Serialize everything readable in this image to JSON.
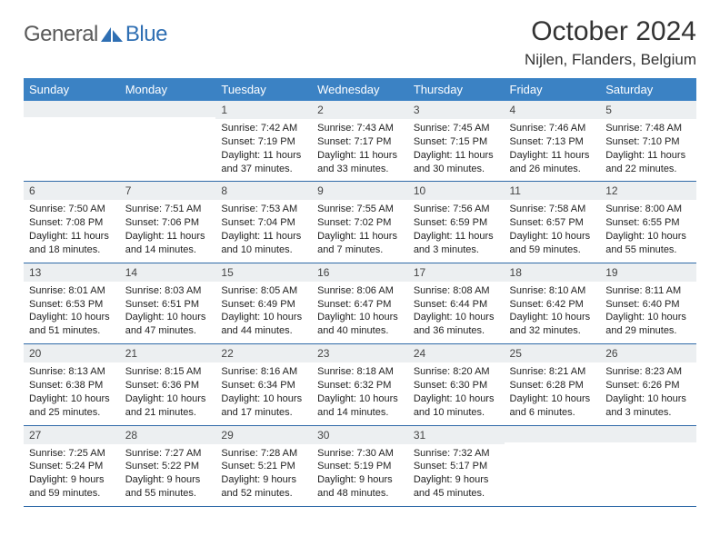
{
  "brand": {
    "word1": "General",
    "word2": "Blue",
    "word1_color": "#6a6a6a",
    "word2_color": "#2f6fb3"
  },
  "title": "October 2024",
  "location": "Nijlen, Flanders, Belgium",
  "colors": {
    "header_bg": "#3b82c4",
    "header_text": "#ffffff",
    "daynum_bg": "#eceff1",
    "row_border": "#2f6aa8",
    "page_bg": "#ffffff"
  },
  "fonts": {
    "title_size": 30,
    "location_size": 17,
    "dayhead_size": 13,
    "body_size": 11
  },
  "day_headers": [
    "Sunday",
    "Monday",
    "Tuesday",
    "Wednesday",
    "Thursday",
    "Friday",
    "Saturday"
  ],
  "weeks": [
    [
      null,
      null,
      {
        "num": "1",
        "sunrise": "Sunrise: 7:42 AM",
        "sunset": "Sunset: 7:19 PM",
        "daylight": "Daylight: 11 hours and 37 minutes."
      },
      {
        "num": "2",
        "sunrise": "Sunrise: 7:43 AM",
        "sunset": "Sunset: 7:17 PM",
        "daylight": "Daylight: 11 hours and 33 minutes."
      },
      {
        "num": "3",
        "sunrise": "Sunrise: 7:45 AM",
        "sunset": "Sunset: 7:15 PM",
        "daylight": "Daylight: 11 hours and 30 minutes."
      },
      {
        "num": "4",
        "sunrise": "Sunrise: 7:46 AM",
        "sunset": "Sunset: 7:13 PM",
        "daylight": "Daylight: 11 hours and 26 minutes."
      },
      {
        "num": "5",
        "sunrise": "Sunrise: 7:48 AM",
        "sunset": "Sunset: 7:10 PM",
        "daylight": "Daylight: 11 hours and 22 minutes."
      }
    ],
    [
      {
        "num": "6",
        "sunrise": "Sunrise: 7:50 AM",
        "sunset": "Sunset: 7:08 PM",
        "daylight": "Daylight: 11 hours and 18 minutes."
      },
      {
        "num": "7",
        "sunrise": "Sunrise: 7:51 AM",
        "sunset": "Sunset: 7:06 PM",
        "daylight": "Daylight: 11 hours and 14 minutes."
      },
      {
        "num": "8",
        "sunrise": "Sunrise: 7:53 AM",
        "sunset": "Sunset: 7:04 PM",
        "daylight": "Daylight: 11 hours and 10 minutes."
      },
      {
        "num": "9",
        "sunrise": "Sunrise: 7:55 AM",
        "sunset": "Sunset: 7:02 PM",
        "daylight": "Daylight: 11 hours and 7 minutes."
      },
      {
        "num": "10",
        "sunrise": "Sunrise: 7:56 AM",
        "sunset": "Sunset: 6:59 PM",
        "daylight": "Daylight: 11 hours and 3 minutes."
      },
      {
        "num": "11",
        "sunrise": "Sunrise: 7:58 AM",
        "sunset": "Sunset: 6:57 PM",
        "daylight": "Daylight: 10 hours and 59 minutes."
      },
      {
        "num": "12",
        "sunrise": "Sunrise: 8:00 AM",
        "sunset": "Sunset: 6:55 PM",
        "daylight": "Daylight: 10 hours and 55 minutes."
      }
    ],
    [
      {
        "num": "13",
        "sunrise": "Sunrise: 8:01 AM",
        "sunset": "Sunset: 6:53 PM",
        "daylight": "Daylight: 10 hours and 51 minutes."
      },
      {
        "num": "14",
        "sunrise": "Sunrise: 8:03 AM",
        "sunset": "Sunset: 6:51 PM",
        "daylight": "Daylight: 10 hours and 47 minutes."
      },
      {
        "num": "15",
        "sunrise": "Sunrise: 8:05 AM",
        "sunset": "Sunset: 6:49 PM",
        "daylight": "Daylight: 10 hours and 44 minutes."
      },
      {
        "num": "16",
        "sunrise": "Sunrise: 8:06 AM",
        "sunset": "Sunset: 6:47 PM",
        "daylight": "Daylight: 10 hours and 40 minutes."
      },
      {
        "num": "17",
        "sunrise": "Sunrise: 8:08 AM",
        "sunset": "Sunset: 6:44 PM",
        "daylight": "Daylight: 10 hours and 36 minutes."
      },
      {
        "num": "18",
        "sunrise": "Sunrise: 8:10 AM",
        "sunset": "Sunset: 6:42 PM",
        "daylight": "Daylight: 10 hours and 32 minutes."
      },
      {
        "num": "19",
        "sunrise": "Sunrise: 8:11 AM",
        "sunset": "Sunset: 6:40 PM",
        "daylight": "Daylight: 10 hours and 29 minutes."
      }
    ],
    [
      {
        "num": "20",
        "sunrise": "Sunrise: 8:13 AM",
        "sunset": "Sunset: 6:38 PM",
        "daylight": "Daylight: 10 hours and 25 minutes."
      },
      {
        "num": "21",
        "sunrise": "Sunrise: 8:15 AM",
        "sunset": "Sunset: 6:36 PM",
        "daylight": "Daylight: 10 hours and 21 minutes."
      },
      {
        "num": "22",
        "sunrise": "Sunrise: 8:16 AM",
        "sunset": "Sunset: 6:34 PM",
        "daylight": "Daylight: 10 hours and 17 minutes."
      },
      {
        "num": "23",
        "sunrise": "Sunrise: 8:18 AM",
        "sunset": "Sunset: 6:32 PM",
        "daylight": "Daylight: 10 hours and 14 minutes."
      },
      {
        "num": "24",
        "sunrise": "Sunrise: 8:20 AM",
        "sunset": "Sunset: 6:30 PM",
        "daylight": "Daylight: 10 hours and 10 minutes."
      },
      {
        "num": "25",
        "sunrise": "Sunrise: 8:21 AM",
        "sunset": "Sunset: 6:28 PM",
        "daylight": "Daylight: 10 hours and 6 minutes."
      },
      {
        "num": "26",
        "sunrise": "Sunrise: 8:23 AM",
        "sunset": "Sunset: 6:26 PM",
        "daylight": "Daylight: 10 hours and 3 minutes."
      }
    ],
    [
      {
        "num": "27",
        "sunrise": "Sunrise: 7:25 AM",
        "sunset": "Sunset: 5:24 PM",
        "daylight": "Daylight: 9 hours and 59 minutes."
      },
      {
        "num": "28",
        "sunrise": "Sunrise: 7:27 AM",
        "sunset": "Sunset: 5:22 PM",
        "daylight": "Daylight: 9 hours and 55 minutes."
      },
      {
        "num": "29",
        "sunrise": "Sunrise: 7:28 AM",
        "sunset": "Sunset: 5:21 PM",
        "daylight": "Daylight: 9 hours and 52 minutes."
      },
      {
        "num": "30",
        "sunrise": "Sunrise: 7:30 AM",
        "sunset": "Sunset: 5:19 PM",
        "daylight": "Daylight: 9 hours and 48 minutes."
      },
      {
        "num": "31",
        "sunrise": "Sunrise: 7:32 AM",
        "sunset": "Sunset: 5:17 PM",
        "daylight": "Daylight: 9 hours and 45 minutes."
      },
      null,
      null
    ]
  ]
}
